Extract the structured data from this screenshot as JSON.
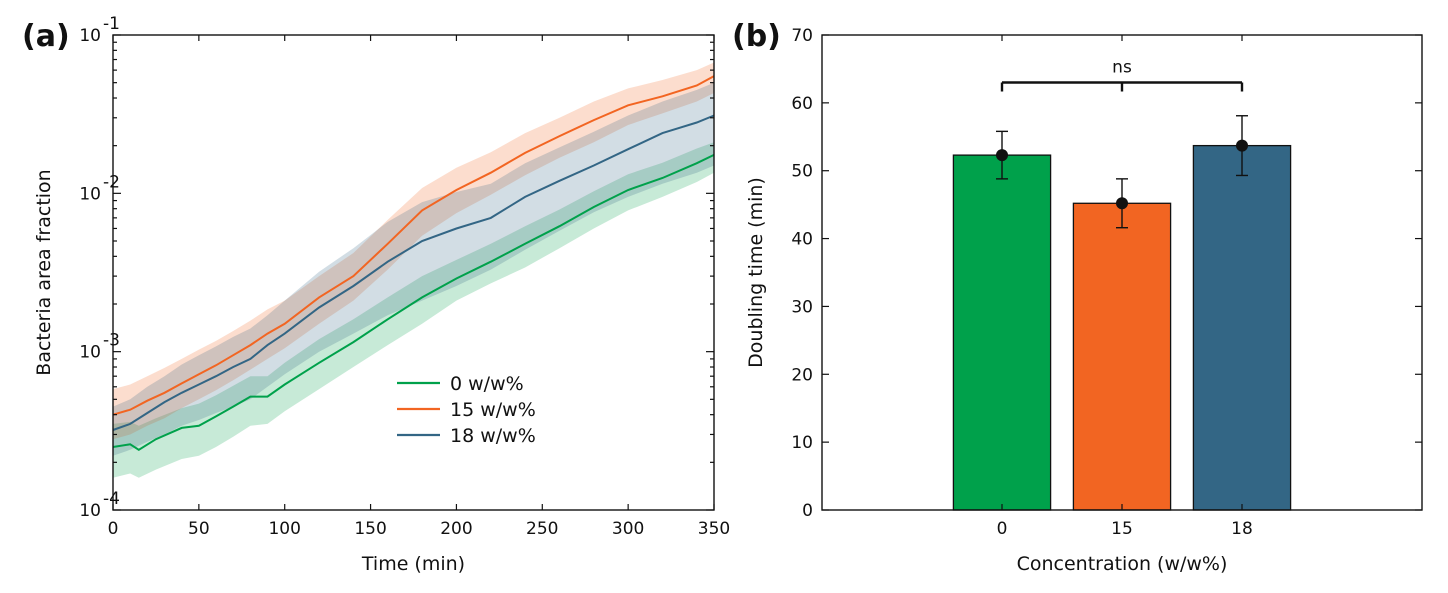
{
  "chart_data": [
    {
      "panel": "(a)",
      "type": "line",
      "xlabel": "Time (min)",
      "ylabel": "Bacteria area fraction",
      "xlim": [
        0,
        350
      ],
      "ylim": [
        0.0001,
        0.1
      ],
      "yscale": "log",
      "xticks": [
        0,
        50,
        100,
        150,
        200,
        250,
        300,
        350
      ],
      "yticks": [
        {
          "value": 0.0001,
          "base": "10",
          "exp": "-4"
        },
        {
          "value": 0.001,
          "base": "10",
          "exp": "-3"
        },
        {
          "value": 0.01,
          "base": "10",
          "exp": "-2"
        },
        {
          "value": 0.1,
          "base": "10",
          "exp": "-1"
        }
      ],
      "legend_position": "center-right",
      "series": [
        {
          "name": "0 w/w%",
          "color": "#00a14b",
          "x": [
            0,
            10,
            15,
            25,
            40,
            50,
            60,
            70,
            80,
            90,
            100,
            120,
            140,
            160,
            180,
            200,
            220,
            240,
            260,
            280,
            300,
            320,
            340,
            350
          ],
          "y": [
            0.00025,
            0.00026,
            0.00024,
            0.00028,
            0.00033,
            0.00034,
            0.00039,
            0.00045,
            0.00052,
            0.00052,
            0.00062,
            0.00085,
            0.00115,
            0.0016,
            0.0022,
            0.0029,
            0.0037,
            0.0048,
            0.0062,
            0.0082,
            0.0105,
            0.0125,
            0.0155,
            0.0175
          ],
          "lower": [
            0.00016,
            0.00017,
            0.00016,
            0.00018,
            0.00021,
            0.00022,
            0.00025,
            0.00029,
            0.00034,
            0.00035,
            0.00042,
            0.00058,
            0.0008,
            0.0011,
            0.0015,
            0.0021,
            0.0027,
            0.0034,
            0.0045,
            0.006,
            0.0078,
            0.0095,
            0.0118,
            0.0135
          ],
          "upper": [
            0.00035,
            0.00036,
            0.00034,
            0.00038,
            0.00044,
            0.00047,
            0.00053,
            0.00061,
            0.0007,
            0.0007,
            0.00085,
            0.0012,
            0.0016,
            0.0022,
            0.003,
            0.0038,
            0.0048,
            0.0062,
            0.0079,
            0.0103,
            0.0132,
            0.0156,
            0.0192,
            0.021
          ]
        },
        {
          "name": "15 w/w%",
          "color": "#f26522",
          "x": [
            0,
            10,
            20,
            30,
            40,
            50,
            60,
            70,
            80,
            90,
            100,
            120,
            140,
            160,
            180,
            200,
            220,
            240,
            260,
            280,
            300,
            320,
            340,
            350
          ],
          "y": [
            0.0004,
            0.00043,
            0.00049,
            0.00055,
            0.00063,
            0.00072,
            0.00082,
            0.00095,
            0.0011,
            0.0013,
            0.0015,
            0.0022,
            0.003,
            0.0048,
            0.0078,
            0.0105,
            0.0135,
            0.018,
            0.023,
            0.029,
            0.036,
            0.041,
            0.048,
            0.055
          ],
          "lower": [
            0.00028,
            0.0003,
            0.00034,
            0.00038,
            0.00044,
            0.0005,
            0.00057,
            0.00066,
            0.00077,
            0.0009,
            0.00105,
            0.0015,
            0.0021,
            0.0033,
            0.0054,
            0.0075,
            0.0098,
            0.013,
            0.0168,
            0.021,
            0.027,
            0.032,
            0.038,
            0.043
          ],
          "upper": [
            0.00058,
            0.00062,
            0.0007,
            0.00079,
            0.0009,
            0.00103,
            0.00117,
            0.00135,
            0.00157,
            0.00185,
            0.0021,
            0.003,
            0.0042,
            0.0068,
            0.0108,
            0.0145,
            0.0182,
            0.024,
            0.03,
            0.038,
            0.046,
            0.052,
            0.06,
            0.067
          ]
        },
        {
          "name": "18 w/w%",
          "color": "#336685",
          "x": [
            0,
            10,
            20,
            30,
            40,
            50,
            60,
            70,
            80,
            90,
            100,
            120,
            140,
            160,
            180,
            200,
            220,
            240,
            260,
            280,
            300,
            320,
            340,
            350
          ],
          "y": [
            0.00032,
            0.00035,
            0.00041,
            0.00048,
            0.00055,
            0.00062,
            0.0007,
            0.0008,
            0.0009,
            0.0011,
            0.0013,
            0.0019,
            0.0026,
            0.0037,
            0.005,
            0.006,
            0.007,
            0.0095,
            0.012,
            0.015,
            0.019,
            0.024,
            0.028,
            0.031
          ],
          "lower": [
            0.00022,
            0.00024,
            0.00027,
            0.0003,
            0.00034,
            0.00037,
            0.00041,
            0.00045,
            0.0005,
            0.0006,
            0.00072,
            0.001,
            0.0013,
            0.0017,
            0.0021,
            0.0026,
            0.0033,
            0.0044,
            0.0058,
            0.0076,
            0.0095,
            0.0115,
            0.0135,
            0.015
          ],
          "upper": [
            0.00045,
            0.0005,
            0.0006,
            0.0007,
            0.00083,
            0.00095,
            0.00108,
            0.00124,
            0.0014,
            0.0017,
            0.0021,
            0.0032,
            0.0045,
            0.0066,
            0.0088,
            0.0102,
            0.0115,
            0.0155,
            0.0195,
            0.0245,
            0.031,
            0.038,
            0.045,
            0.05
          ]
        }
      ]
    },
    {
      "panel": "(b)",
      "type": "bar",
      "xlabel": "Concentration (w/w%)",
      "ylabel": "Doubling time (min)",
      "ylim": [
        0,
        70
      ],
      "yticks": [
        0,
        10,
        20,
        30,
        40,
        50,
        60,
        70
      ],
      "categories": [
        "0",
        "15",
        "18"
      ],
      "values": [
        52.3,
        45.2,
        53.7
      ],
      "errors": [
        3.5,
        3.6,
        4.4
      ],
      "colors": [
        "#00a14b",
        "#f26522",
        "#336685"
      ],
      "annotation": {
        "text": "ns",
        "from": "0",
        "to": "18",
        "y": 63
      }
    }
  ]
}
